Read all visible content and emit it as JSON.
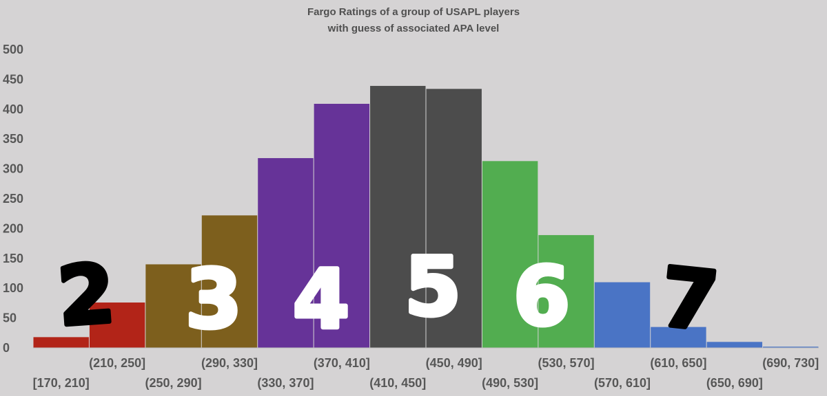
{
  "chart_data": {
    "type": "bar",
    "title": "Fargo Ratings of a group of USAPL players",
    "subtitle": "with guess of associated APA level",
    "xlabel": "",
    "ylabel": "",
    "ylim": [
      0,
      500
    ],
    "yticks": [
      0,
      50,
      100,
      150,
      200,
      250,
      300,
      350,
      400,
      450,
      500
    ],
    "grid": false,
    "categories": [
      "[170, 210]",
      "(210, 250]",
      "(250, 290]",
      "(290, 330]",
      "(330, 370]",
      "(370, 410]",
      "(410, 450]",
      "(450, 490]",
      "(490, 530]",
      "(530, 570]",
      "(570, 610]",
      "(610, 650]",
      "(650, 690]",
      "(690, 730]"
    ],
    "values": [
      18,
      76,
      140,
      222,
      318,
      409,
      439,
      434,
      313,
      189,
      110,
      35,
      10,
      2
    ],
    "bar_colors": [
      "#b22418",
      "#b22418",
      "#7d5f1d",
      "#7d5f1d",
      "#663398",
      "#663398",
      "#4c4c4c",
      "#4c4c4c",
      "#52ad50",
      "#52ad50",
      "#4a74c5",
      "#4a74c5",
      "#4a74c5",
      "#4a74c5"
    ],
    "annotations": [
      {
        "text": "2",
        "color": "#000000"
      },
      {
        "text": "3",
        "color": "#ffffff"
      },
      {
        "text": "4",
        "color": "#ffffff"
      },
      {
        "text": "5",
        "color": "#ffffff"
      },
      {
        "text": "6",
        "color": "#ffffff"
      },
      {
        "text": "7",
        "color": "#000000"
      }
    ]
  }
}
